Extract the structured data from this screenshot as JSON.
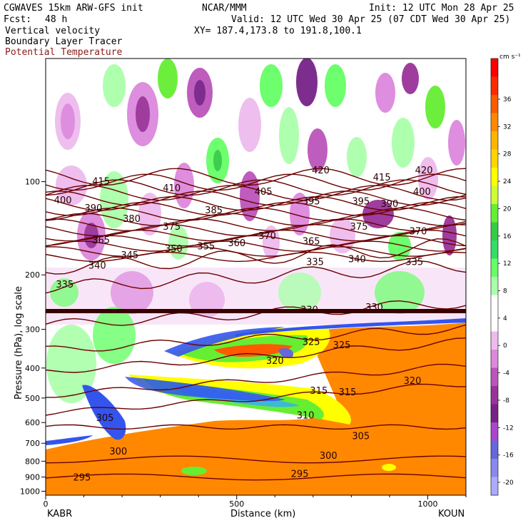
{
  "header": {
    "model_title": "CGWAVES 15km ARW-GFS init",
    "org": "NCAR/MMM",
    "init": "Init: 12 UTC Mon 28 Apr 25",
    "fcst_label": "Fcst:",
    "fcst_value": "48 h",
    "valid": "Valid: 12 UTC Wed 30 Apr 25 (07 CDT Wed 30 Apr 25)",
    "xy": "XY= 187.4,173.8 to 191.8,100.1",
    "fields": [
      {
        "name": "Vertical velocity",
        "color": "#000000"
      },
      {
        "name": "Boundary Layer Tracer",
        "color": "#000000"
      },
      {
        "name": "Potential Temperature",
        "color": "#8b1a1a"
      }
    ]
  },
  "colorbar": {
    "unit": "cm s⁻¹",
    "tick_labels": [
      "36",
      "32",
      "28",
      "24",
      "20",
      "16",
      "12",
      "8",
      "4",
      "0",
      "-4",
      "-8",
      "-12",
      "-16",
      "-20"
    ],
    "colors": [
      "#ff0000",
      "#ff2a00",
      "#ff5a00",
      "#ff8800",
      "#ffb400",
      "#ffd400",
      "#ffff00",
      "#ccff33",
      "#66ee33",
      "#33cc44",
      "#33dd66",
      "#66ff66",
      "#aaffaa",
      "#ffffff",
      "#ffffff",
      "#eebbee",
      "#dd88dd",
      "#bb55bb",
      "#993399",
      "#772288",
      "#aa44cc",
      "#6666dd",
      "#8888ee",
      "#aaaaff"
    ]
  },
  "chart_data": {
    "type": "heatmap",
    "title": "",
    "xlabel": "Distance (km)",
    "ylabel": "Pressure (hPa), log scale",
    "x_ticks": [
      "0",
      "500",
      "1000"
    ],
    "x_tick_values": [
      0,
      500,
      1000
    ],
    "xlim": [
      0,
      1100
    ],
    "y_ticks": [
      "100",
      "200",
      "300",
      "400",
      "500",
      "600",
      "700",
      "800",
      "900",
      "1000"
    ],
    "y_tick_values": [
      100,
      200,
      300,
      400,
      500,
      600,
      700,
      800,
      900,
      1000
    ],
    "ylim": [
      1030,
      40
    ],
    "y_scale": "log",
    "endpoints": {
      "left": "KABR",
      "right": "KOUN"
    },
    "theta_contour_labels": [
      {
        "text": "420",
        "x": 720,
        "p": 92
      },
      {
        "text": "420",
        "x": 990,
        "p": 92
      },
      {
        "text": "415",
        "x": 145,
        "p": 100
      },
      {
        "text": "415",
        "x": 880,
        "p": 97
      },
      {
        "text": "410",
        "x": 330,
        "p": 105
      },
      {
        "text": "405",
        "x": 570,
        "p": 108
      },
      {
        "text": "400",
        "x": 45,
        "p": 115
      },
      {
        "text": "400",
        "x": 985,
        "p": 108
      },
      {
        "text": "395",
        "x": 695,
        "p": 116
      },
      {
        "text": "395",
        "x": 825,
        "p": 116
      },
      {
        "text": "390",
        "x": 125,
        "p": 122
      },
      {
        "text": "390",
        "x": 900,
        "p": 118
      },
      {
        "text": "385",
        "x": 440,
        "p": 124
      },
      {
        "text": "380",
        "x": 225,
        "p": 132
      },
      {
        "text": "375",
        "x": 330,
        "p": 140
      },
      {
        "text": "375",
        "x": 820,
        "p": 140
      },
      {
        "text": "370",
        "x": 580,
        "p": 150
      },
      {
        "text": "370",
        "x": 975,
        "p": 145
      },
      {
        "text": "365",
        "x": 145,
        "p": 155
      },
      {
        "text": "365",
        "x": 695,
        "p": 156
      },
      {
        "text": "360",
        "x": 500,
        "p": 158
      },
      {
        "text": "355",
        "x": 420,
        "p": 162
      },
      {
        "text": "350",
        "x": 335,
        "p": 165
      },
      {
        "text": "345",
        "x": 220,
        "p": 173
      },
      {
        "text": "340",
        "x": 135,
        "p": 187
      },
      {
        "text": "340",
        "x": 815,
        "p": 178
      },
      {
        "text": "335",
        "x": 50,
        "p": 215
      },
      {
        "text": "335",
        "x": 705,
        "p": 182
      },
      {
        "text": "335",
        "x": 965,
        "p": 182
      },
      {
        "text": "330",
        "x": 690,
        "p": 260
      },
      {
        "text": "330",
        "x": 860,
        "p": 255
      },
      {
        "text": "325",
        "x": 695,
        "p": 330
      },
      {
        "text": "325",
        "x": 775,
        "p": 338
      },
      {
        "text": "320",
        "x": 600,
        "p": 380
      },
      {
        "text": "320",
        "x": 960,
        "p": 440
      },
      {
        "text": "315",
        "x": 715,
        "p": 475
      },
      {
        "text": "315",
        "x": 790,
        "p": 480
      },
      {
        "text": "310",
        "x": 680,
        "p": 570
      },
      {
        "text": "305",
        "x": 155,
        "p": 580
      },
      {
        "text": "305",
        "x": 825,
        "p": 665
      },
      {
        "text": "300",
        "x": 190,
        "p": 745
      },
      {
        "text": "300",
        "x": 740,
        "p": 770
      },
      {
        "text": "295",
        "x": 95,
        "p": 905
      },
      {
        "text": "295",
        "x": 665,
        "p": 880
      }
    ],
    "series": [
      {
        "kind": "theta",
        "levels": [
          295,
          300,
          305,
          310,
          315,
          320,
          325,
          330,
          335,
          340,
          345,
          350,
          355,
          360,
          365,
          370,
          375,
          380,
          385,
          390,
          395,
          400,
          405,
          410,
          415,
          420
        ]
      }
    ]
  }
}
